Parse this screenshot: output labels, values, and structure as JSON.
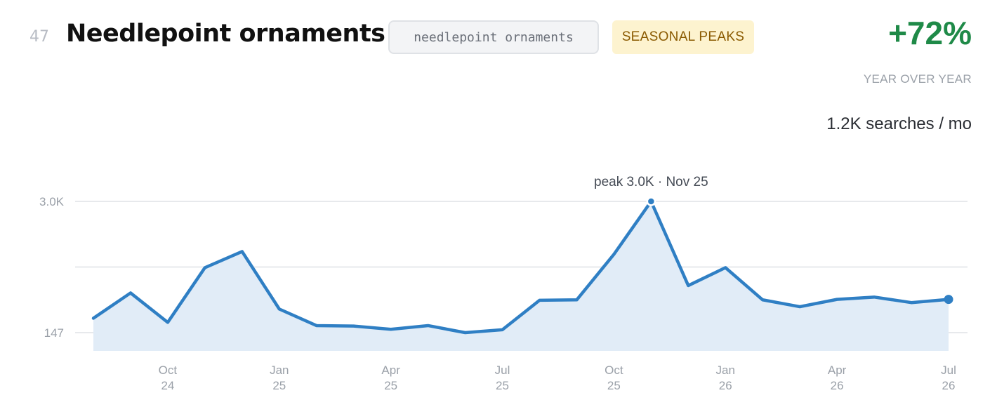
{
  "header": {
    "rank": "47",
    "title": "Needlepoint ornaments",
    "query": "needlepoint ornaments",
    "tag": "SEASONAL PEAKS",
    "yoy_value": "+72%",
    "yoy_label": "YEAR OVER YEAR",
    "volume": "1.2K searches / mo"
  },
  "colors": {
    "line": "#2f7fc4",
    "area": "#e1ecf7",
    "growth": "#1f8a48",
    "tag_bg": "#fdf3cf"
  },
  "chart_data": {
    "type": "area",
    "x": [
      "2024-08",
      "2024-09",
      "2024-10",
      "2024-11",
      "2024-12",
      "2025-01",
      "2025-02",
      "2025-03",
      "2025-04",
      "2025-05",
      "2025-06",
      "2025-07",
      "2025-08",
      "2025-09",
      "2025-10",
      "2025-11",
      "2025-12",
      "2026-01",
      "2026-02",
      "2026-03",
      "2026-04",
      "2026-05",
      "2026-06",
      "2026-07"
    ],
    "series": [
      {
        "values": [
          460,
          1010,
          370,
          1560,
          1910,
          660,
          300,
          290,
          220,
          300,
          147,
          210,
          850,
          860,
          1850,
          3000,
          1170,
          1560,
          860,
          710,
          870,
          920,
          800,
          870
        ]
      }
    ],
    "ylim": [
      147,
      3000
    ],
    "yticks": [
      "3.0K",
      "",
      "147"
    ],
    "xticks": [
      {
        "x": "2024-10",
        "label1": "Oct",
        "label2": "24"
      },
      {
        "x": "2025-01",
        "label1": "Jan",
        "label2": "25"
      },
      {
        "x": "2025-04",
        "label1": "Apr",
        "label2": "25"
      },
      {
        "x": "2025-07",
        "label1": "Jul",
        "label2": "25"
      },
      {
        "x": "2025-10",
        "label1": "Oct",
        "label2": "25"
      },
      {
        "x": "2026-01",
        "label1": "Jan",
        "label2": "26"
      },
      {
        "x": "2026-04",
        "label1": "Apr",
        "label2": "26"
      },
      {
        "x": "2026-07",
        "label1": "Jul",
        "label2": "26"
      }
    ],
    "annotation": {
      "x": "2025-11",
      "text": "peak 3.0K · Nov 25"
    },
    "grid": true,
    "legend": "none"
  }
}
